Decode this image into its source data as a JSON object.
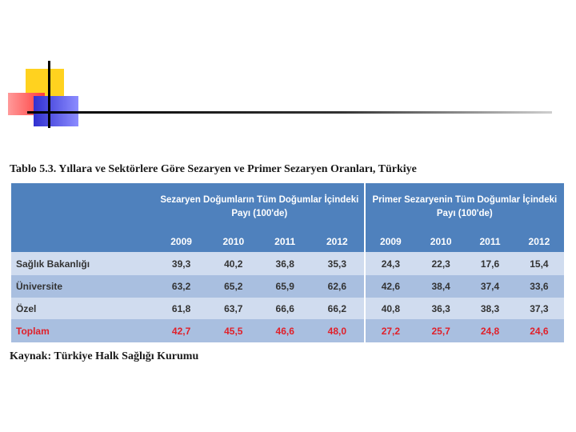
{
  "slide": {
    "title": "Tablo 5.3. Yıllara ve Sektörlere Göre Sezaryen ve Primer Sezaryen Oranları, Türkiye",
    "source": "Kaynak: Türkiye Halk Sağlığı Kurumu"
  },
  "table": {
    "group_headers": [
      "Sezaryen Doğumların Tüm Doğumlar İçindeki Payı (100'de)",
      "Primer Sezaryenin Tüm Doğumlar İçindeki Payı  (100'de)"
    ],
    "years": [
      "2009",
      "2010",
      "2011",
      "2012",
      "2009",
      "2010",
      "2011",
      "2012"
    ],
    "rows": [
      {
        "label": "Sağlık Bakanlığı",
        "values": [
          "39,3",
          "40,2",
          "36,8",
          "35,3",
          "24,3",
          "22,3",
          "17,6",
          "15,4"
        ]
      },
      {
        "label": "Üniversite",
        "values": [
          "63,2",
          "65,2",
          "65,9",
          "62,6",
          "42,6",
          "38,4",
          "37,4",
          "33,6"
        ]
      },
      {
        "label": "Özel",
        "values": [
          "61,8",
          "63,7",
          "66,6",
          "66,2",
          "40,8",
          "36,3",
          "38,3",
          "37,3"
        ]
      },
      {
        "label": "Toplam",
        "values": [
          "42,7",
          "45,5",
          "46,6",
          "48,0",
          "27,2",
          "25,7",
          "24,8",
          "24,6"
        ]
      }
    ]
  },
  "colors": {
    "header_bg": "#4f81bd",
    "row_light": "#d0dcef",
    "row_dark": "#a9bfe0",
    "total_text": "#e0202a"
  }
}
